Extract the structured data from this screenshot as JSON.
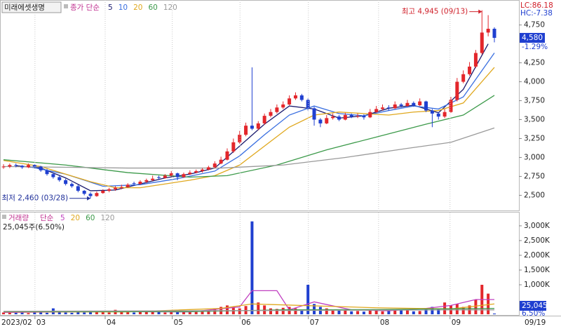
{
  "chart_data": [
    {
      "type": "candlestick",
      "title": "미래에셋생명",
      "ma_label": "종가 단순",
      "up_color": "#e3262b",
      "down_color": "#1f3fd0",
      "ohlc": [
        [
          2870,
          2910,
          2850,
          2880
        ],
        [
          2880,
          2920,
          2860,
          2900
        ],
        [
          2900,
          2920,
          2870,
          2890
        ],
        [
          2890,
          2900,
          2850,
          2870
        ],
        [
          2870,
          2920,
          2860,
          2900
        ],
        [
          2900,
          2910,
          2860,
          2880
        ],
        [
          2880,
          2890,
          2810,
          2830
        ],
        [
          2830,
          2850,
          2760,
          2780
        ],
        [
          2780,
          2800,
          2720,
          2740
        ],
        [
          2740,
          2760,
          2680,
          2700
        ],
        [
          2700,
          2720,
          2630,
          2650
        ],
        [
          2650,
          2670,
          2600,
          2620
        ],
        [
          2620,
          2640,
          2540,
          2560
        ],
        [
          2560,
          2570,
          2500,
          2520
        ],
        [
          2520,
          2540,
          2460,
          2490
        ],
        [
          2490,
          2550,
          2480,
          2530
        ],
        [
          2530,
          2580,
          2520,
          2560
        ],
        [
          2560,
          2600,
          2540,
          2580
        ],
        [
          2580,
          2620,
          2560,
          2600
        ],
        [
          2600,
          2640,
          2580,
          2610
        ],
        [
          2610,
          2660,
          2600,
          2640
        ],
        [
          2660,
          2680,
          2630,
          2650
        ],
        [
          2650,
          2700,
          2640,
          2680
        ],
        [
          2680,
          2720,
          2660,
          2700
        ],
        [
          2700,
          2760,
          2690,
          2720
        ],
        [
          2740,
          2760,
          2710,
          2730
        ],
        [
          2730,
          2780,
          2720,
          2760
        ],
        [
          2760,
          2820,
          2750,
          2790
        ],
        [
          2790,
          2800,
          2700,
          2740
        ],
        [
          2740,
          2800,
          2730,
          2780
        ],
        [
          2780,
          2830,
          2770,
          2800
        ],
        [
          2800,
          2840,
          2790,
          2820
        ],
        [
          2820,
          2860,
          2800,
          2840
        ],
        [
          2840,
          2890,
          2830,
          2870
        ],
        [
          2870,
          2950,
          2860,
          2920
        ],
        [
          2920,
          3010,
          2910,
          2970
        ],
        [
          2970,
          3120,
          2960,
          3080
        ],
        [
          3080,
          3250,
          3060,
          3200
        ],
        [
          3200,
          3350,
          3180,
          3300
        ],
        [
          3300,
          3460,
          3280,
          3420
        ],
        [
          3420,
          4190,
          3360,
          3380
        ],
        [
          3380,
          3480,
          3360,
          3450
        ],
        [
          3450,
          3580,
          3430,
          3550
        ],
        [
          3550,
          3640,
          3530,
          3600
        ],
        [
          3600,
          3700,
          3580,
          3660
        ],
        [
          3660,
          3740,
          3640,
          3700
        ],
        [
          3700,
          3820,
          3690,
          3780
        ],
        [
          3780,
          3860,
          3760,
          3820
        ],
        [
          3820,
          3840,
          3740,
          3760
        ],
        [
          3760,
          3780,
          3620,
          3650
        ],
        [
          3650,
          3670,
          3420,
          3500
        ],
        [
          3500,
          3520,
          3400,
          3450
        ],
        [
          3450,
          3560,
          3440,
          3520
        ],
        [
          3520,
          3580,
          3500,
          3540
        ],
        [
          3540,
          3560,
          3480,
          3500
        ],
        [
          3500,
          3590,
          3490,
          3560
        ],
        [
          3560,
          3580,
          3520,
          3540
        ],
        [
          3540,
          3580,
          3520,
          3550
        ],
        [
          3550,
          3570,
          3500,
          3530
        ],
        [
          3530,
          3640,
          3520,
          3600
        ],
        [
          3600,
          3680,
          3590,
          3640
        ],
        [
          3640,
          3700,
          3620,
          3660
        ],
        [
          3660,
          3690,
          3620,
          3650
        ],
        [
          3650,
          3740,
          3640,
          3700
        ],
        [
          3700,
          3720,
          3660,
          3680
        ],
        [
          3680,
          3760,
          3670,
          3720
        ],
        [
          3720,
          3740,
          3670,
          3690
        ],
        [
          3690,
          3780,
          3680,
          3740
        ],
        [
          3740,
          3750,
          3600,
          3620
        ],
        [
          3620,
          3640,
          3400,
          3580
        ],
        [
          3580,
          3600,
          3500,
          3540
        ],
        [
          3540,
          3640,
          3520,
          3600
        ],
        [
          3600,
          3800,
          3590,
          3760
        ],
        [
          3760,
          4050,
          3740,
          4000
        ],
        [
          4000,
          4150,
          3980,
          4100
        ],
        [
          4100,
          4260,
          4080,
          4200
        ],
        [
          4200,
          4420,
          4180,
          4380
        ],
        [
          4380,
          4945,
          4360,
          4650
        ],
        [
          4650,
          4880,
          4600,
          4700
        ],
        [
          4700,
          4720,
          4520,
          4580
        ]
      ],
      "xlim": [
        0,
        79
      ],
      "ylim": [
        2300,
        5080
      ],
      "yticks": [
        {
          "value": 2500,
          "label": "2,500"
        },
        {
          "value": 2750,
          "label": "2,750"
        },
        {
          "value": 3000,
          "label": "3,000"
        },
        {
          "value": 3250,
          "label": "3,250"
        },
        {
          "value": 3500,
          "label": "3,500"
        },
        {
          "value": 3750,
          "label": "3,750"
        },
        {
          "value": 4000,
          "label": "4,000"
        },
        {
          "value": 4250,
          "label": "4,250"
        },
        {
          "value": 4750,
          "label": "4,750"
        }
      ],
      "ma_series": [
        {
          "name": "5",
          "color": "#1a1a6e",
          "x": [
            2,
            6,
            10,
            14,
            18,
            22,
            26,
            30,
            34,
            38,
            42,
            46,
            50,
            54,
            58,
            62,
            66,
            70,
            74,
            78
          ],
          "values": [
            2890,
            2860,
            2730,
            2560,
            2570,
            2650,
            2730,
            2780,
            2860,
            3150,
            3440,
            3680,
            3640,
            3520,
            3550,
            3650,
            3690,
            3590,
            3900,
            4500
          ]
        },
        {
          "name": "10",
          "color": "#3a6fe0",
          "x": [
            4,
            10,
            16,
            22,
            28,
            34,
            38,
            42,
            46,
            50,
            54,
            58,
            62,
            66,
            70,
            74,
            79
          ],
          "values": [
            2880,
            2780,
            2620,
            2640,
            2720,
            2820,
            3020,
            3300,
            3560,
            3680,
            3580,
            3550,
            3620,
            3680,
            3640,
            3800,
            4380
          ]
        },
        {
          "name": "20",
          "color": "#e0a81e",
          "x": [
            0,
            6,
            10,
            14,
            18,
            22,
            26,
            30,
            34,
            38,
            42,
            46,
            50,
            54,
            58,
            62,
            66,
            70,
            74,
            79
          ],
          "values": [
            2960,
            2880,
            2780,
            2680,
            2600,
            2600,
            2650,
            2700,
            2760,
            2900,
            3150,
            3400,
            3560,
            3600,
            3580,
            3560,
            3600,
            3620,
            3720,
            4190
          ]
        },
        {
          "name": "60",
          "color": "#3c9a4a",
          "x": [
            0,
            10,
            20,
            30,
            36,
            44,
            52,
            60,
            68,
            74,
            79
          ],
          "values": [
            2970,
            2900,
            2800,
            2740,
            2760,
            2900,
            3100,
            3270,
            3440,
            3560,
            3820
          ]
        },
        {
          "name": "120",
          "color": "#9a9a9a",
          "x": [
            0,
            20,
            35,
            45,
            55,
            65,
            72,
            79
          ],
          "values": [
            2880,
            2860,
            2860,
            2900,
            3000,
            3120,
            3200,
            3390
          ]
        }
      ],
      "annotations": [
        {
          "text": "최고 4,945 (09/13)",
          "x": 77,
          "y": 4945,
          "color": "#d0202a"
        },
        {
          "text": "최저 2,460 (03/28)",
          "x": 14,
          "y": 2460,
          "color": "#1f2f9a"
        }
      ],
      "last_price_label": "4,580",
      "change_label": "-1.29%",
      "lc_label": "LC:86.18",
      "hc_label": "HC:-7.38"
    },
    {
      "type": "volume",
      "title": "거래량",
      "ma_label": "단순",
      "summary": "25,045주(6.50%)",
      "values": [
        60,
        80,
        50,
        70,
        40,
        90,
        60,
        50,
        200,
        70,
        60,
        50,
        80,
        60,
        120,
        90,
        70,
        60,
        150,
        80,
        70,
        60,
        80,
        90,
        100,
        80,
        60,
        70,
        90,
        80,
        70,
        80,
        110,
        150,
        200,
        250,
        300,
        250,
        200,
        280,
        3150,
        400,
        300,
        200,
        180,
        220,
        250,
        200,
        150,
        1000,
        350,
        250,
        200,
        150,
        120,
        130,
        100,
        110,
        90,
        140,
        130,
        100,
        110,
        120,
        150,
        130,
        100,
        110,
        200,
        250,
        180,
        400,
        300,
        350,
        250,
        300,
        500,
        1000,
        700,
        25.045
      ],
      "xlim": [
        0,
        79
      ],
      "ylim": [
        0,
        3450
      ],
      "yticks": [
        {
          "value": 1000,
          "label": "1,000K"
        },
        {
          "value": 1500,
          "label": "1,500K"
        },
        {
          "value": 2000,
          "label": "2,000K"
        },
        {
          "value": 2500,
          "label": "2,500K"
        },
        {
          "value": 3000,
          "label": "3,000K"
        }
      ],
      "xticks": [
        {
          "value": 0,
          "label": "2023/02"
        },
        {
          "value": 5.4,
          "label": "03"
        },
        {
          "value": 16.7,
          "label": "04"
        },
        {
          "value": 27.5,
          "label": "05"
        },
        {
          "value": 38.4,
          "label": "06"
        },
        {
          "value": 49.4,
          "label": "07"
        },
        {
          "value": 60.7,
          "label": "08"
        },
        {
          "value": 72.2,
          "label": "09"
        }
      ],
      "last_date_label": "09/19",
      "ma_series": [
        {
          "name": "5",
          "color": "#c040c0",
          "x": [
            0,
            10,
            20,
            30,
            38,
            40,
            44,
            46,
            50,
            56,
            62,
            68,
            72,
            76,
            79
          ],
          "values": [
            60,
            80,
            90,
            80,
            250,
            800,
            800,
            150,
            420,
            150,
            120,
            200,
            300,
            500,
            500
          ]
        },
        {
          "name": "20",
          "color": "#e0a81e",
          "x": [
            0,
            20,
            35,
            40,
            60,
            72,
            79
          ],
          "values": [
            80,
            80,
            200,
            350,
            220,
            180,
            350
          ]
        },
        {
          "name": "60",
          "color": "#3c9a4a",
          "x": [
            0,
            30,
            45,
            60,
            79
          ],
          "values": [
            90,
            90,
            150,
            160,
            200
          ]
        },
        {
          "name": "120",
          "color": "#9a9a9a",
          "x": [
            0,
            79
          ],
          "values": [
            100,
            150
          ]
        }
      ],
      "last_volume_label": "25,045",
      "last_pct_label": "6.50%"
    }
  ]
}
